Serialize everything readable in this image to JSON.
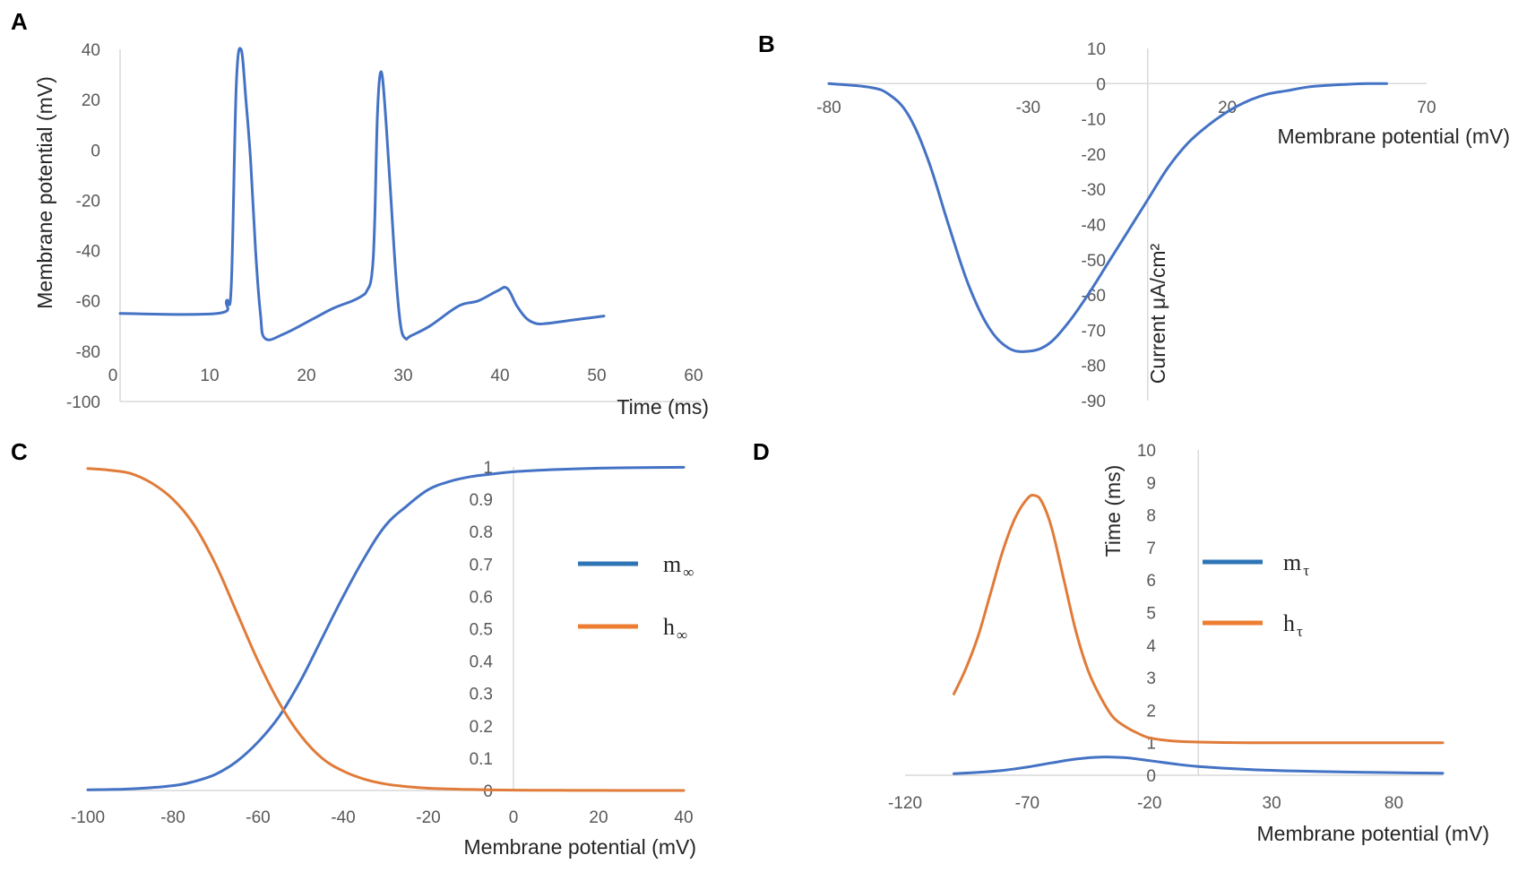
{
  "colors": {
    "blue": "#4472c4",
    "orange": "#e07b39",
    "legend_blue": "#2e75b6",
    "legend_orange": "#ed7d31"
  },
  "chart_data": [
    {
      "panel": "A",
      "type": "line",
      "title": "",
      "xlabel": "Time (ms)",
      "ylabel": "Membrane potential (mV)",
      "xlim": [
        0,
        60
      ],
      "ylim": [
        -100,
        40
      ],
      "xticks": [
        "0",
        "10",
        "20",
        "30",
        "40",
        "50",
        "60"
      ],
      "yticks": [
        "40",
        "20",
        "0",
        "-20",
        "-40",
        "-60",
        "-80",
        "-100"
      ],
      "series": [
        {
          "name": "membrane potential",
          "color": "#4472c4",
          "x": [
            0,
            10,
            11,
            11.5,
            12,
            12.5,
            13,
            13.5,
            14,
            14.5,
            15,
            17,
            20,
            22,
            24,
            25,
            25.5,
            26,
            26.3,
            26.6,
            27,
            27.5,
            28,
            28.5,
            29,
            29.5,
            30,
            32,
            35,
            37,
            39,
            40,
            41,
            42,
            43,
            44,
            46,
            48,
            50
          ],
          "y": [
            -65,
            -65,
            -60,
            -53,
            25,
            40,
            20,
            -5,
            -40,
            -65,
            -75,
            -73,
            -67,
            -63,
            -60,
            -58,
            -56,
            -50,
            -30,
            15,
            31,
            10,
            -20,
            -50,
            -70,
            -75,
            -74,
            -70,
            -62,
            -60,
            -56,
            -55,
            -62,
            -67,
            -69,
            -69,
            -68,
            -67,
            -66
          ]
        }
      ]
    },
    {
      "panel": "B",
      "type": "line",
      "title": "",
      "xlabel": "Membrane potential (mV)",
      "ylabel": "Current μA/cm²",
      "xlim": [
        -80,
        70
      ],
      "ylim": [
        -90,
        10
      ],
      "xticks": [
        "-80",
        "-30",
        "20",
        "70"
      ],
      "yticks": [
        "10",
        "0",
        "-10",
        "-20",
        "-30",
        "-40",
        "-50",
        "-60",
        "-70",
        "-80",
        "-90"
      ],
      "series": [
        {
          "name": "current",
          "color": "#4472c4",
          "x": [
            -80,
            -70,
            -65,
            -60,
            -55,
            -50,
            -45,
            -40,
            -35,
            -30,
            -25,
            -20,
            -15,
            -10,
            -5,
            0,
            5,
            10,
            15,
            20,
            25,
            30,
            35,
            40,
            45,
            50,
            55,
            60
          ],
          "y": [
            0,
            -1,
            -3,
            -9,
            -22,
            -40,
            -57,
            -69,
            -75,
            -76,
            -74,
            -68,
            -60,
            -51,
            -42,
            -33,
            -24,
            -17,
            -12,
            -8,
            -5,
            -3,
            -2,
            -1,
            -0.5,
            -0.2,
            0,
            0
          ]
        }
      ]
    },
    {
      "panel": "C",
      "type": "line",
      "title": "",
      "xlabel": "Membrane potential (mV)",
      "ylabel": "",
      "xlim": [
        -100,
        40
      ],
      "ylim": [
        0,
        1
      ],
      "xticks": [
        "-100",
        "-80",
        "-60",
        "-40",
        "-20",
        "0",
        "20",
        "40"
      ],
      "yticks": [
        "1",
        "0.9",
        "0.8",
        "0.7",
        "0.6",
        "0.5",
        "0.4",
        "0.3",
        "0.2",
        "0.1",
        "0"
      ],
      "legend": [
        {
          "label": "m",
          "sub": "∞",
          "color": "#2e75b6"
        },
        {
          "label": "h",
          "sub": "∞",
          "color": "#ed7d31"
        }
      ],
      "series": [
        {
          "name": "m∞",
          "color": "#4472c4",
          "x": [
            -100,
            -90,
            -80,
            -75,
            -70,
            -65,
            -60,
            -55,
            -50,
            -45,
            -40,
            -35,
            -30,
            -25,
            -20,
            -15,
            -10,
            -5,
            0,
            10,
            20,
            30,
            40
          ],
          "y": [
            0.002,
            0.005,
            0.015,
            0.028,
            0.05,
            0.09,
            0.15,
            0.23,
            0.34,
            0.47,
            0.6,
            0.72,
            0.82,
            0.88,
            0.93,
            0.955,
            0.97,
            0.978,
            0.985,
            0.992,
            0.996,
            0.998,
            0.999
          ]
        },
        {
          "name": "h∞",
          "color": "#e07b39",
          "x": [
            -100,
            -95,
            -90,
            -85,
            -80,
            -75,
            -70,
            -65,
            -60,
            -55,
            -50,
            -45,
            -40,
            -35,
            -30,
            -25,
            -20,
            -10,
            0,
            10,
            20,
            30,
            40
          ],
          "y": [
            0.995,
            0.99,
            0.98,
            0.95,
            0.9,
            0.82,
            0.7,
            0.55,
            0.4,
            0.27,
            0.17,
            0.1,
            0.06,
            0.035,
            0.02,
            0.012,
            0.007,
            0.003,
            0.001,
            0.0005,
            0.0002,
            0.0001,
            0
          ]
        }
      ]
    },
    {
      "panel": "D",
      "type": "line",
      "title": "",
      "xlabel": "Membrane potential (mV)",
      "ylabel": "Time (ms)",
      "xlim": [
        -120,
        100
      ],
      "ylim": [
        0,
        10
      ],
      "xticks": [
        "-120",
        "-70",
        "-20",
        "30",
        "80"
      ],
      "yticks": [
        "10",
        "9",
        "8",
        "7",
        "6",
        "5",
        "4",
        "3",
        "2",
        "1",
        "0"
      ],
      "legend": [
        {
          "label": "m",
          "sub": "τ",
          "color": "#2e75b6"
        },
        {
          "label": "h",
          "sub": "τ",
          "color": "#ed7d31"
        }
      ],
      "series": [
        {
          "name": "mτ",
          "color": "#4472c4",
          "x": [
            -100,
            -90,
            -80,
            -70,
            -60,
            -50,
            -40,
            -30,
            -20,
            -10,
            0,
            20,
            40,
            60,
            80,
            100
          ],
          "y": [
            0.05,
            0.09,
            0.15,
            0.25,
            0.38,
            0.5,
            0.56,
            0.54,
            0.45,
            0.35,
            0.27,
            0.18,
            0.13,
            0.1,
            0.08,
            0.06
          ]
        },
        {
          "name": "hτ",
          "color": "#e07b39",
          "x": [
            -100,
            -95,
            -90,
            -85,
            -80,
            -75,
            -70,
            -67,
            -64,
            -60,
            -55,
            -50,
            -45,
            -40,
            -35,
            -30,
            -25,
            -20,
            -10,
            0,
            20,
            50,
            100
          ],
          "y": [
            2.5,
            3.3,
            4.3,
            5.6,
            6.9,
            7.9,
            8.5,
            8.6,
            8.4,
            7.6,
            6.0,
            4.4,
            3.2,
            2.4,
            1.8,
            1.5,
            1.3,
            1.15,
            1.05,
            1.02,
            1.0,
            1.0,
            1.0
          ]
        }
      ]
    }
  ]
}
